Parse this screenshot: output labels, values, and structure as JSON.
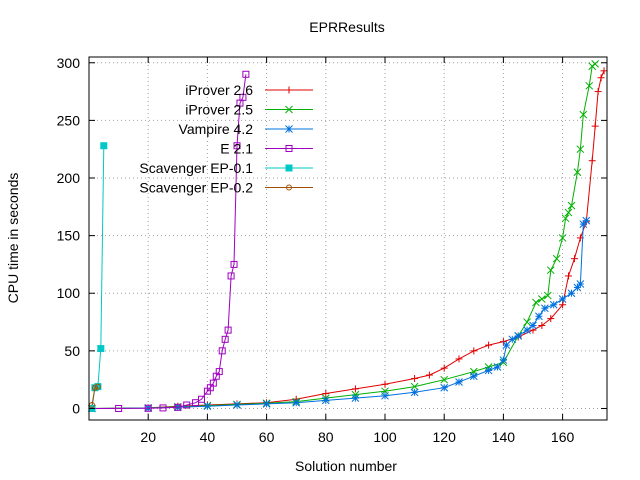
{
  "chart_data": {
    "type": "line",
    "title": "EPRResults",
    "xlabel": "Solution number",
    "ylabel": "CPU time in seconds",
    "xlim": [
      0,
      175
    ],
    "ylim": [
      -10,
      305
    ],
    "xticks": [
      20,
      40,
      60,
      80,
      100,
      120,
      140,
      160
    ],
    "yticks": [
      0,
      50,
      100,
      150,
      200,
      250,
      300
    ],
    "grid": true,
    "legend_position": "top-left",
    "series": [
      {
        "name": "iProver 2.6",
        "color": "#e00000",
        "marker": "plus",
        "points": [
          [
            1,
            0
          ],
          [
            20,
            0.5
          ],
          [
            30,
            2
          ],
          [
            40,
            3
          ],
          [
            50,
            4
          ],
          [
            60,
            5
          ],
          [
            70,
            8
          ],
          [
            80,
            13
          ],
          [
            90,
            17
          ],
          [
            100,
            21
          ],
          [
            110,
            26
          ],
          [
            115,
            29
          ],
          [
            120,
            35
          ],
          [
            125,
            43
          ],
          [
            130,
            50
          ],
          [
            135,
            55
          ],
          [
            140,
            58
          ],
          [
            145,
            62
          ],
          [
            150,
            68
          ],
          [
            153,
            72
          ],
          [
            156,
            78
          ],
          [
            160,
            90
          ],
          [
            162,
            115
          ],
          [
            164,
            130
          ],
          [
            166,
            148
          ],
          [
            168,
            162
          ],
          [
            170,
            215
          ],
          [
            171,
            245
          ],
          [
            172,
            275
          ],
          [
            173,
            287
          ],
          [
            174,
            293
          ]
        ]
      },
      {
        "name": "iProver 2.5",
        "color": "#00b000",
        "marker": "x",
        "points": [
          [
            1,
            0
          ],
          [
            20,
            0.5
          ],
          [
            30,
            1.5
          ],
          [
            40,
            2.5
          ],
          [
            50,
            3.5
          ],
          [
            60,
            4.5
          ],
          [
            70,
            6
          ],
          [
            80,
            9
          ],
          [
            90,
            12
          ],
          [
            100,
            15
          ],
          [
            110,
            19
          ],
          [
            120,
            25
          ],
          [
            130,
            32
          ],
          [
            135,
            36
          ],
          [
            140,
            40
          ],
          [
            145,
            63
          ],
          [
            148,
            75
          ],
          [
            151,
            92
          ],
          [
            153,
            95
          ],
          [
            155,
            98
          ],
          [
            156,
            120
          ],
          [
            158,
            130
          ],
          [
            160,
            148
          ],
          [
            161,
            165
          ],
          [
            162,
            170
          ],
          [
            163,
            176
          ],
          [
            165,
            205
          ],
          [
            166,
            225
          ],
          [
            167,
            255
          ],
          [
            169,
            280
          ],
          [
            170,
            297
          ],
          [
            171,
            299
          ]
        ]
      },
      {
        "name": "Vampire 4.2",
        "color": "#0070e0",
        "marker": "star",
        "points": [
          [
            1,
            0
          ],
          [
            20,
            0.3
          ],
          [
            30,
            1
          ],
          [
            40,
            2
          ],
          [
            50,
            3
          ],
          [
            60,
            4
          ],
          [
            70,
            5
          ],
          [
            80,
            7
          ],
          [
            90,
            9
          ],
          [
            100,
            11
          ],
          [
            110,
            14
          ],
          [
            120,
            18
          ],
          [
            125,
            23
          ],
          [
            130,
            28
          ],
          [
            135,
            33
          ],
          [
            138,
            36
          ],
          [
            140,
            42
          ],
          [
            141,
            55
          ],
          [
            143,
            60
          ],
          [
            145,
            63
          ],
          [
            148,
            68
          ],
          [
            150,
            72
          ],
          [
            152,
            80
          ],
          [
            154,
            87
          ],
          [
            157,
            90
          ],
          [
            160,
            95
          ],
          [
            163,
            100
          ],
          [
            165,
            105
          ],
          [
            166,
            108
          ],
          [
            167,
            160
          ],
          [
            168,
            163
          ]
        ]
      },
      {
        "name": "E 2.1",
        "color": "#a000c0",
        "marker": "square",
        "points": [
          [
            1,
            0
          ],
          [
            10,
            0
          ],
          [
            20,
            0.2
          ],
          [
            25,
            0.5
          ],
          [
            30,
            1
          ],
          [
            33,
            3
          ],
          [
            36,
            5
          ],
          [
            38,
            8
          ],
          [
            40,
            15
          ],
          [
            41,
            18
          ],
          [
            42,
            22
          ],
          [
            43,
            28
          ],
          [
            44,
            32
          ],
          [
            45,
            50
          ],
          [
            46,
            60
          ],
          [
            47,
            68
          ],
          [
            48,
            115
          ],
          [
            49,
            125
          ],
          [
            50,
            228
          ],
          [
            51,
            265
          ],
          [
            52,
            270
          ],
          [
            53,
            290
          ]
        ]
      },
      {
        "name": "Scavenger EP-0.1",
        "color": "#00c8c8",
        "marker": "filled-square",
        "points": [
          [
            1,
            0
          ],
          [
            2,
            18
          ],
          [
            3,
            19
          ],
          [
            4,
            52
          ],
          [
            5,
            228
          ]
        ]
      },
      {
        "name": "Scavenger EP-0.2",
        "color": "#a05000",
        "marker": "circle",
        "points": [
          [
            1,
            3
          ],
          [
            2,
            18
          ],
          [
            3,
            19
          ]
        ]
      }
    ]
  }
}
